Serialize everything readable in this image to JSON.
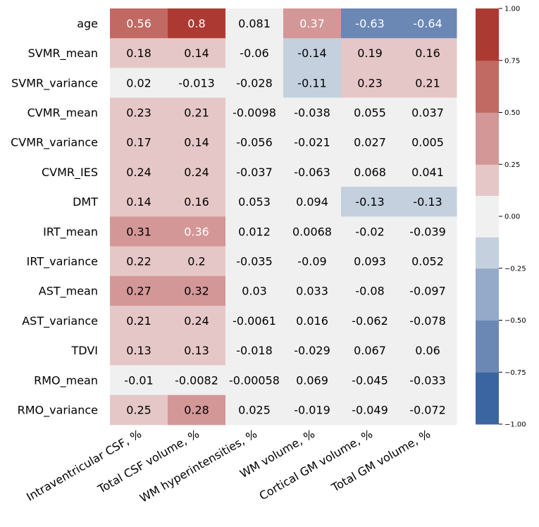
{
  "chart_data": {
    "type": "heatmap",
    "title": "",
    "rows": [
      "age",
      "SVMR_mean",
      "SVMR_variance",
      "CVMR_mean",
      "CVMR_variance",
      "CVMR_IES",
      "DMT",
      "IRT_mean",
      "IRT_variance",
      "AST_mean",
      "AST_variance",
      "TDVI",
      "RMO_mean",
      "RMO_variance"
    ],
    "columns": [
      "Intraventricular CSF, %",
      "Total CSF volume, %",
      "WM hyperintensities, %",
      "WM volume, %",
      "Cortical GM volume, %",
      "Total GM volume, %"
    ],
    "values": [
      [
        0.56,
        0.8,
        0.081,
        0.37,
        -0.63,
        -0.64
      ],
      [
        0.18,
        0.14,
        -0.06,
        -0.14,
        0.19,
        0.16
      ],
      [
        0.02,
        -0.013,
        -0.028,
        -0.11,
        0.23,
        0.21
      ],
      [
        0.23,
        0.21,
        -0.0098,
        -0.038,
        0.055,
        0.037
      ],
      [
        0.17,
        0.14,
        -0.056,
        -0.021,
        0.027,
        0.005
      ],
      [
        0.24,
        0.24,
        -0.037,
        -0.063,
        0.068,
        0.041
      ],
      [
        0.14,
        0.16,
        0.053,
        0.094,
        -0.13,
        -0.13
      ],
      [
        0.31,
        0.36,
        0.012,
        0.0068,
        -0.02,
        -0.039
      ],
      [
        0.22,
        0.2,
        -0.035,
        -0.09,
        0.093,
        0.052
      ],
      [
        0.27,
        0.32,
        0.03,
        0.033,
        -0.08,
        -0.097
      ],
      [
        0.21,
        0.24,
        -0.0061,
        0.016,
        -0.062,
        -0.078
      ],
      [
        0.13,
        0.13,
        -0.018,
        -0.029,
        0.067,
        0.06
      ],
      [
        -0.01,
        -0.0082,
        -0.00058,
        0.069,
        -0.045,
        -0.033
      ],
      [
        0.25,
        0.28,
        0.025,
        -0.019,
        -0.049,
        -0.072
      ]
    ],
    "value_labels": [
      [
        "0.56",
        "0.8",
        "0.081",
        "0.37",
        "-0.63",
        "-0.64"
      ],
      [
        "0.18",
        "0.14",
        "-0.06",
        "-0.14",
        "0.19",
        "0.16"
      ],
      [
        "0.02",
        "-0.013",
        "-0.028",
        "-0.11",
        "0.23",
        "0.21"
      ],
      [
        "0.23",
        "0.21",
        "-0.0098",
        "-0.038",
        "0.055",
        "0.037"
      ],
      [
        "0.17",
        "0.14",
        "-0.056",
        "-0.021",
        "0.027",
        "0.005"
      ],
      [
        "0.24",
        "0.24",
        "-0.037",
        "-0.063",
        "0.068",
        "0.041"
      ],
      [
        "0.14",
        "0.16",
        "0.053",
        "0.094",
        "-0.13",
        "-0.13"
      ],
      [
        "0.31",
        "0.36",
        "0.012",
        "0.0068",
        "-0.02",
        "-0.039"
      ],
      [
        "0.22",
        "0.2",
        "-0.035",
        "-0.09",
        "0.093",
        "0.052"
      ],
      [
        "0.27",
        "0.32",
        "0.03",
        "0.033",
        "-0.08",
        "-0.097"
      ],
      [
        "0.21",
        "0.24",
        "-0.0061",
        "0.016",
        "-0.062",
        "-0.078"
      ],
      [
        "0.13",
        "0.13",
        "-0.018",
        "-0.029",
        "0.067",
        "0.06"
      ],
      [
        "-0.01",
        "-0.0082",
        "-0.00058",
        "0.069",
        "-0.045",
        "-0.033"
      ],
      [
        "0.25",
        "0.28",
        "0.025",
        "-0.019",
        "-0.049",
        "-0.072"
      ]
    ],
    "color_range": [
      -1.0,
      1.0
    ],
    "colorbar": {
      "ticks": [
        1.0,
        0.75,
        0.5,
        0.25,
        0.0,
        -0.25,
        -0.5,
        -0.75,
        -1.0
      ],
      "tick_labels": [
        "1.00",
        "0.75",
        "0.50",
        "0.25",
        "0.00",
        "−0.25",
        "−0.50",
        "−0.75",
        "−1.00"
      ],
      "placement": "right"
    },
    "color_bins": [
      {
        "range": [
          -1.0,
          -0.75
        ],
        "color": "#3b65a0"
      },
      {
        "range": [
          -0.75,
          -0.5
        ],
        "color": "#6b88b5"
      },
      {
        "range": [
          -0.5,
          -0.25
        ],
        "color": "#95a9c9"
      },
      {
        "range": [
          -0.25,
          -0.1
        ],
        "color": "#c4d0de"
      },
      {
        "range": [
          -0.1,
          0.1
        ],
        "color": "#f0f0f0"
      },
      {
        "range": [
          0.1,
          0.25
        ],
        "color": "#e6c7c7"
      },
      {
        "range": [
          0.25,
          0.5
        ],
        "color": "#d39797"
      },
      {
        "range": [
          0.5,
          0.75
        ],
        "color": "#c06a63"
      },
      {
        "range": [
          0.75,
          1.0
        ],
        "color": "#ad3a32"
      }
    ],
    "light_text_color": "#ffffff",
    "dark_text_color": "#000000"
  }
}
